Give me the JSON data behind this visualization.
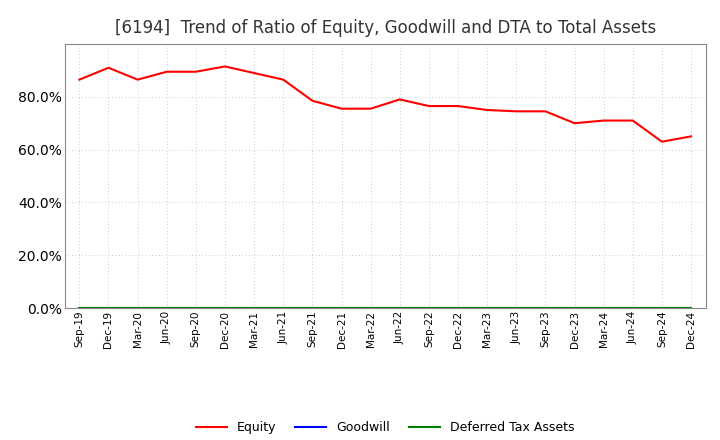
{
  "title": "[6194]  Trend of Ratio of Equity, Goodwill and DTA to Total Assets",
  "x_labels": [
    "Sep-19",
    "Dec-19",
    "Mar-20",
    "Jun-20",
    "Sep-20",
    "Dec-20",
    "Mar-21",
    "Jun-21",
    "Sep-21",
    "Dec-21",
    "Mar-22",
    "Jun-22",
    "Sep-22",
    "Dec-22",
    "Mar-23",
    "Jun-23",
    "Sep-23",
    "Dec-23",
    "Mar-24",
    "Jun-24",
    "Sep-24",
    "Dec-24"
  ],
  "equity": [
    86.5,
    91.0,
    86.5,
    89.5,
    89.5,
    91.5,
    89.0,
    86.5,
    78.5,
    75.5,
    75.5,
    79.0,
    76.5,
    76.5,
    75.0,
    74.5,
    74.5,
    70.0,
    71.0,
    71.0,
    63.0,
    65.0
  ],
  "goodwill": [
    0,
    0,
    0,
    0,
    0,
    0,
    0,
    0,
    0,
    0,
    0,
    0,
    0,
    0,
    0,
    0,
    0,
    0,
    0,
    0,
    0,
    0
  ],
  "deferred_tax_assets": [
    0,
    0,
    0,
    0,
    0,
    0,
    0,
    0,
    0,
    0,
    0,
    0,
    0,
    0,
    0,
    0,
    0,
    0,
    0,
    0,
    0,
    0
  ],
  "equity_color": "#ff0000",
  "goodwill_color": "#0000ff",
  "dta_color": "#008000",
  "background_color": "#ffffff",
  "plot_bg_color": "#ffffff",
  "grid_color": "#aaaaaa",
  "ylim": [
    0,
    100
  ],
  "yticks": [
    0,
    20,
    40,
    60,
    80
  ],
  "title_fontsize": 12,
  "legend_labels": [
    "Equity",
    "Goodwill",
    "Deferred Tax Assets"
  ]
}
